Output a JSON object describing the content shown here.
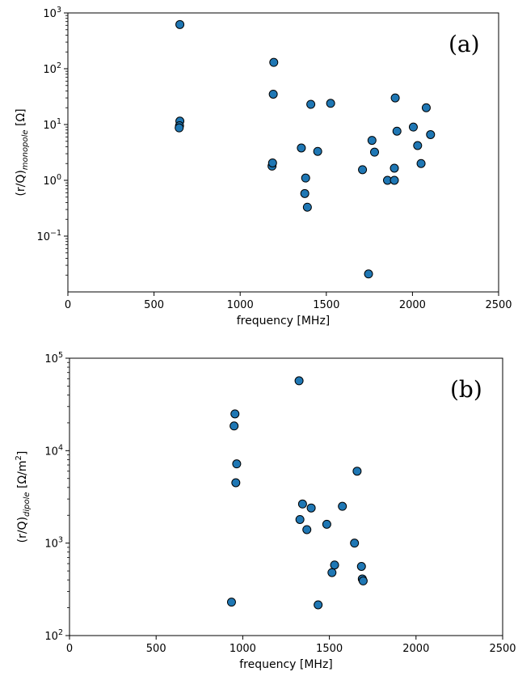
{
  "chart_data": [
    {
      "type": "scatter",
      "panel_label": "(a)",
      "xlabel": "frequency [MHz]",
      "ylabel": {
        "prefix": "(r/Q)",
        "sub": "monopole",
        "unit": " [Ω]"
      },
      "xlim": [
        0,
        2500
      ],
      "ylim": [
        0.01,
        1000
      ],
      "yscale": "log",
      "xticks": [
        0,
        500,
        1000,
        1500,
        2000,
        2500
      ],
      "xtick_labels": [
        "0",
        "500",
        "1000",
        "1500",
        "2000",
        "2500"
      ],
      "yticks": [
        {
          "value": 0.1,
          "base": "10",
          "exp": "−1"
        },
        {
          "value": 1,
          "base": "10",
          "exp": "0"
        },
        {
          "value": 10,
          "base": "10",
          "exp": "1"
        },
        {
          "value": 100,
          "base": "10",
          "exp": "2"
        },
        {
          "value": 1000,
          "base": "10",
          "exp": "3"
        }
      ],
      "grid": false,
      "marker_color": "#1f77b4",
      "points": [
        [
          650,
          620
        ],
        [
          650,
          11.5
        ],
        [
          648,
          9.5
        ],
        [
          646,
          8.7
        ],
        [
          1185,
          1.8
        ],
        [
          1188,
          2.05
        ],
        [
          1192,
          35
        ],
        [
          1195,
          130
        ],
        [
          1355,
          3.8
        ],
        [
          1375,
          0.58
        ],
        [
          1380,
          1.1
        ],
        [
          1390,
          0.33
        ],
        [
          1410,
          23
        ],
        [
          1450,
          3.3
        ],
        [
          1525,
          24
        ],
        [
          1710,
          1.55
        ],
        [
          1745,
          0.021
        ],
        [
          1765,
          5.2
        ],
        [
          1780,
          3.2
        ],
        [
          1855,
          1.0
        ],
        [
          1895,
          1.0
        ],
        [
          1895,
          1.65
        ],
        [
          1900,
          30
        ],
        [
          1910,
          7.6
        ],
        [
          2005,
          9.0
        ],
        [
          2030,
          4.2
        ],
        [
          2050,
          2.0
        ],
        [
          2080,
          20
        ],
        [
          2105,
          6.6
        ]
      ]
    },
    {
      "type": "scatter",
      "panel_label": "(b)",
      "xlabel": "frequency [MHz]",
      "ylabel": {
        "prefix": "(r/Q)",
        "sub": "dipole",
        "unit": " [Ω/m",
        "sup": "2",
        "close": "]"
      },
      "xlim": [
        0,
        2500
      ],
      "ylim": [
        100,
        100000
      ],
      "yscale": "log",
      "xticks": [
        0,
        500,
        1000,
        1500,
        2000,
        2500
      ],
      "xtick_labels": [
        "0",
        "500",
        "1000",
        "1500",
        "2000",
        "2500"
      ],
      "yticks": [
        {
          "value": 100,
          "base": "10",
          "exp": "2"
        },
        {
          "value": 1000,
          "base": "10",
          "exp": "3"
        },
        {
          "value": 10000,
          "base": "10",
          "exp": "4"
        },
        {
          "value": 100000,
          "base": "10",
          "exp": "5"
        }
      ],
      "grid": false,
      "marker_color": "#1f77b4",
      "points": [
        [
          935,
          230
        ],
        [
          950,
          18500
        ],
        [
          955,
          25000
        ],
        [
          960,
          4500
        ],
        [
          965,
          7200
        ],
        [
          1325,
          57000
        ],
        [
          1330,
          1800
        ],
        [
          1345,
          2650
        ],
        [
          1370,
          1400
        ],
        [
          1395,
          2400
        ],
        [
          1435,
          215
        ],
        [
          1485,
          1600
        ],
        [
          1515,
          480
        ],
        [
          1530,
          580
        ],
        [
          1575,
          2500
        ],
        [
          1645,
          1000
        ],
        [
          1660,
          6000
        ],
        [
          1685,
          560
        ],
        [
          1690,
          410
        ],
        [
          1695,
          390
        ]
      ]
    }
  ]
}
